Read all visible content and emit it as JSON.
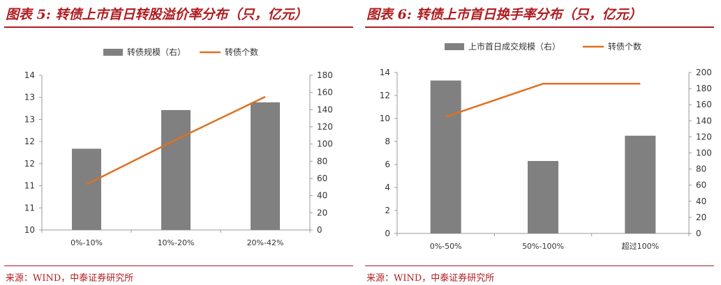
{
  "figures": [
    {
      "title": "图表 5: 转债上市首日转股溢价率分布（只，亿元）",
      "source": "来源：WIND，中泰证券研究所",
      "chart_data": {
        "type": "bar",
        "categories": [
          "0%-10%",
          "10%-20%",
          "20%-42%"
        ],
        "series": [
          {
            "name": "转债规模（右）",
            "type": "bar",
            "axis": "left",
            "values": [
              12.1,
              13.1,
              13.3
            ],
            "color": "#808080"
          },
          {
            "name": "转债个数",
            "type": "line",
            "axis": "right",
            "values": [
              53,
              105,
              155
            ],
            "color": "#e0701f"
          }
        ],
        "y_left": {
          "min": 10,
          "max": 14,
          "ticks": [
            "10",
            "11",
            "11",
            "12",
            "12",
            "13",
            "13",
            "14"
          ]
        },
        "y_right": {
          "min": 0,
          "max": 180,
          "ticks": [
            "0",
            "20",
            "40",
            "60",
            "80",
            "100",
            "120",
            "140",
            "160",
            "180"
          ]
        },
        "legend_position": "top-center",
        "grid": false
      }
    },
    {
      "title": "图表 6: 转债上市首日换手率分布（只，亿元）",
      "source": "来源：WIND，中泰证券研究所",
      "chart_data": {
        "type": "bar",
        "categories": [
          "0%-50%",
          "50%-100%",
          "超过100%"
        ],
        "series": [
          {
            "name": "上市首日成交规模（右）",
            "type": "bar",
            "axis": "left",
            "values": [
              13.3,
              6.3,
              8.5
            ],
            "color": "#808080"
          },
          {
            "name": "转债个数",
            "type": "line",
            "axis": "right",
            "values": [
              145,
              186,
              186
            ],
            "color": "#e0701f"
          }
        ],
        "y_left": {
          "min": 0,
          "max": 14,
          "ticks": [
            "0",
            "2",
            "4",
            "6",
            "8",
            "10",
            "12",
            "14"
          ]
        },
        "y_right": {
          "min": 0,
          "max": 200,
          "ticks": [
            "0",
            "20",
            "40",
            "60",
            "80",
            "100",
            "120",
            "140",
            "160",
            "180",
            "200"
          ]
        },
        "legend_position": "top-center",
        "grid": false
      }
    }
  ]
}
